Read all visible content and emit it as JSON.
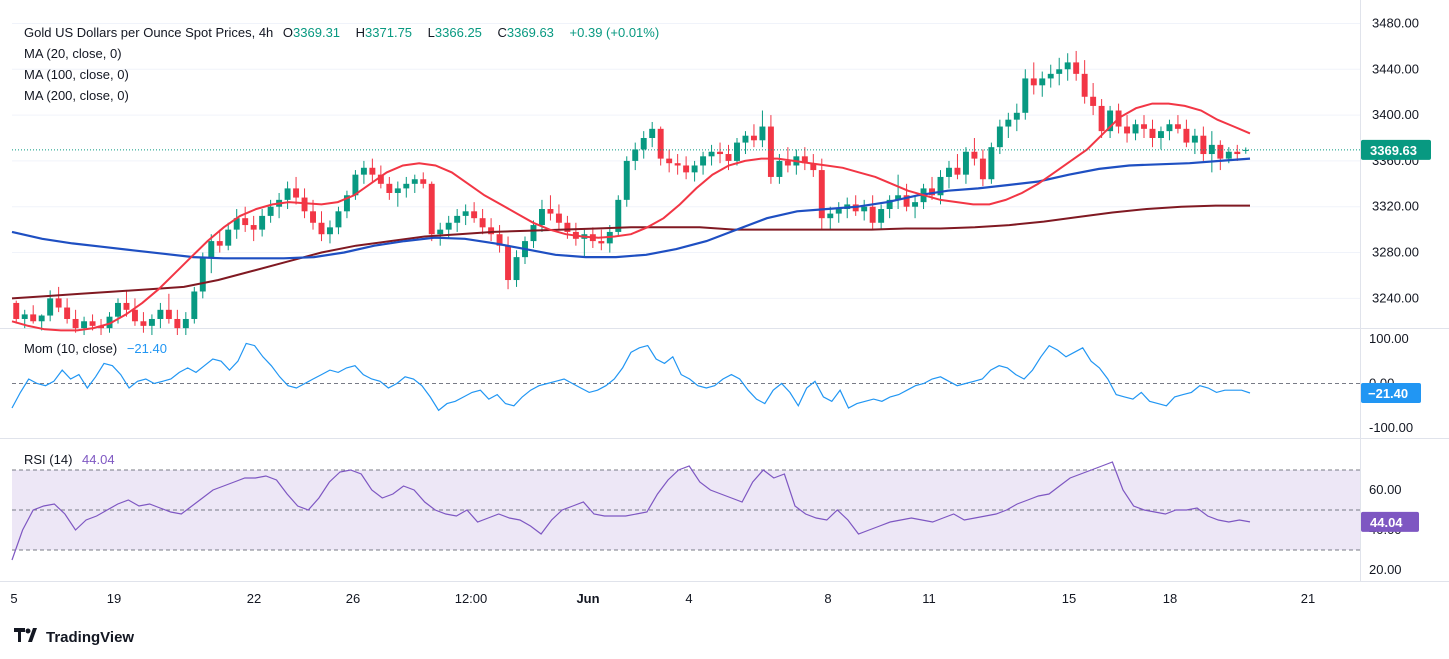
{
  "header": {
    "symbol": "Gold US Dollars per Ounce Spot Prices, 4h",
    "open_label": "O",
    "open": "3369.31",
    "high_label": "H",
    "high": "3371.75",
    "low_label": "L",
    "low": "3366.25",
    "close_label": "C",
    "close": "3369.63",
    "change": "+0.39 (+0.01%)"
  },
  "legend": {
    "ma20": "MA (20, close, 0)",
    "ma100": "MA (100, close, 0)",
    "ma200": "MA (200, close, 0)",
    "mom_name": "Mom (10, close)",
    "mom_value": "−21.40",
    "rsi_name": "RSI (14)",
    "rsi_value": "44.04"
  },
  "footer": {
    "brand": "TradingView"
  },
  "colors": {
    "up": "#089981",
    "down": "#f23645",
    "ma20": "#f23645",
    "ma100": "#1e4fc2",
    "ma200": "#801922",
    "mom": "#2196f3",
    "rsi": "#7e57c2",
    "rsi_band": "#ede7f6",
    "grid": "#f0f3fa",
    "axis_text": "#131722"
  },
  "chart_data": [
    {
      "type": "candlestick",
      "title": "Gold US Dollars per Ounce Spot Prices, 4h",
      "ylim": [
        3215,
        3490
      ],
      "y_ticks": [
        "3240.00",
        "3280.00",
        "3320.00",
        "3360.00",
        "3400.00",
        "3440.00",
        "3480.00"
      ],
      "last_price": "3369.63",
      "x_ticks": [
        "5",
        "19",
        "22",
        "26",
        "12:00",
        "Jun",
        "4",
        "8",
        "11",
        "15",
        "18",
        "21"
      ],
      "candles": [
        [
          3236,
          3238,
          3218,
          3222
        ],
        [
          3222,
          3230,
          3214,
          3226
        ],
        [
          3226,
          3234,
          3218,
          3220
        ],
        [
          3220,
          3226,
          3212,
          3225
        ],
        [
          3225,
          3247,
          3220,
          3240
        ],
        [
          3240,
          3250,
          3228,
          3232
        ],
        [
          3232,
          3240,
          3218,
          3222
        ],
        [
          3222,
          3230,
          3210,
          3214
        ],
        [
          3214,
          3224,
          3208,
          3220
        ],
        [
          3220,
          3226,
          3212,
          3216
        ],
        [
          3216,
          3222,
          3208,
          3214
        ],
        [
          3214,
          3228,
          3210,
          3224
        ],
        [
          3224,
          3240,
          3218,
          3236
        ],
        [
          3236,
          3246,
          3224,
          3230
        ],
        [
          3230,
          3240,
          3216,
          3220
        ],
        [
          3220,
          3228,
          3210,
          3216
        ],
        [
          3216,
          3226,
          3208,
          3222
        ],
        [
          3222,
          3236,
          3214,
          3230
        ],
        [
          3230,
          3244,
          3218,
          3222
        ],
        [
          3222,
          3230,
          3208,
          3214
        ],
        [
          3214,
          3228,
          3208,
          3222
        ],
        [
          3222,
          3250,
          3218,
          3246
        ],
        [
          3246,
          3280,
          3240,
          3276
        ],
        [
          3276,
          3296,
          3262,
          3290
        ],
        [
          3290,
          3300,
          3280,
          3286
        ],
        [
          3286,
          3306,
          3282,
          3300
        ],
        [
          3300,
          3318,
          3292,
          3310
        ],
        [
          3310,
          3320,
          3298,
          3304
        ],
        [
          3304,
          3312,
          3290,
          3300
        ],
        [
          3300,
          3318,
          3294,
          3312
        ],
        [
          3312,
          3326,
          3306,
          3320
        ],
        [
          3320,
          3332,
          3310,
          3326
        ],
        [
          3326,
          3342,
          3318,
          3336
        ],
        [
          3336,
          3346,
          3322,
          3328
        ],
        [
          3328,
          3336,
          3310,
          3316
        ],
        [
          3316,
          3326,
          3300,
          3306
        ],
        [
          3306,
          3316,
          3290,
          3296
        ],
        [
          3296,
          3308,
          3288,
          3302
        ],
        [
          3302,
          3320,
          3296,
          3316
        ],
        [
          3316,
          3334,
          3310,
          3330
        ],
        [
          3330,
          3352,
          3326,
          3348
        ],
        [
          3348,
          3360,
          3340,
          3354
        ],
        [
          3354,
          3362,
          3342,
          3348
        ],
        [
          3348,
          3356,
          3336,
          3340
        ],
        [
          3340,
          3346,
          3326,
          3332
        ],
        [
          3332,
          3342,
          3320,
          3336
        ],
        [
          3336,
          3346,
          3328,
          3340
        ],
        [
          3340,
          3348,
          3332,
          3344
        ],
        [
          3344,
          3350,
          3336,
          3340
        ],
        [
          3340,
          3342,
          3290,
          3296
        ],
        [
          3296,
          3306,
          3286,
          3300
        ],
        [
          3300,
          3312,
          3292,
          3306
        ],
        [
          3306,
          3318,
          3298,
          3312
        ],
        [
          3312,
          3322,
          3304,
          3316
        ],
        [
          3316,
          3324,
          3306,
          3310
        ],
        [
          3310,
          3318,
          3296,
          3302
        ],
        [
          3302,
          3310,
          3290,
          3296
        ],
        [
          3296,
          3304,
          3280,
          3286
        ],
        [
          3286,
          3294,
          3248,
          3256
        ],
        [
          3256,
          3282,
          3250,
          3276
        ],
        [
          3276,
          3294,
          3270,
          3290
        ],
        [
          3290,
          3308,
          3284,
          3304
        ],
        [
          3304,
          3326,
          3298,
          3318
        ],
        [
          3318,
          3330,
          3308,
          3314
        ],
        [
          3314,
          3322,
          3300,
          3306
        ],
        [
          3306,
          3312,
          3292,
          3298
        ],
        [
          3298,
          3306,
          3286,
          3292
        ],
        [
          3292,
          3300,
          3276,
          3296
        ],
        [
          3296,
          3302,
          3284,
          3290
        ],
        [
          3290,
          3300,
          3282,
          3288
        ],
        [
          3288,
          3304,
          3280,
          3298
        ],
        [
          3298,
          3330,
          3294,
          3326
        ],
        [
          3326,
          3364,
          3320,
          3360
        ],
        [
          3360,
          3376,
          3352,
          3370
        ],
        [
          3370,
          3386,
          3362,
          3380
        ],
        [
          3380,
          3394,
          3372,
          3388
        ],
        [
          3388,
          3390,
          3356,
          3362
        ],
        [
          3362,
          3370,
          3350,
          3358
        ],
        [
          3358,
          3366,
          3348,
          3356
        ],
        [
          3356,
          3364,
          3344,
          3350
        ],
        [
          3350,
          3360,
          3342,
          3356
        ],
        [
          3356,
          3368,
          3348,
          3364
        ],
        [
          3364,
          3374,
          3356,
          3368
        ],
        [
          3368,
          3376,
          3358,
          3366
        ],
        [
          3366,
          3374,
          3352,
          3360
        ],
        [
          3360,
          3380,
          3356,
          3376
        ],
        [
          3376,
          3386,
          3366,
          3382
        ],
        [
          3382,
          3392,
          3372,
          3378
        ],
        [
          3378,
          3404,
          3372,
          3390
        ],
        [
          3390,
          3400,
          3340,
          3346
        ],
        [
          3346,
          3366,
          3340,
          3360
        ],
        [
          3360,
          3372,
          3350,
          3356
        ],
        [
          3356,
          3370,
          3348,
          3364
        ],
        [
          3364,
          3372,
          3352,
          3358
        ],
        [
          3358,
          3366,
          3346,
          3352
        ],
        [
          3352,
          3362,
          3300,
          3310
        ],
        [
          3310,
          3320,
          3300,
          3314
        ],
        [
          3314,
          3324,
          3306,
          3318
        ],
        [
          3318,
          3328,
          3310,
          3322
        ],
        [
          3322,
          3330,
          3312,
          3316
        ],
        [
          3316,
          3326,
          3308,
          3320
        ],
        [
          3320,
          3330,
          3300,
          3306
        ],
        [
          3306,
          3322,
          3300,
          3318
        ],
        [
          3318,
          3330,
          3310,
          3326
        ],
        [
          3326,
          3348,
          3318,
          3330
        ],
        [
          3330,
          3340,
          3316,
          3320
        ],
        [
          3320,
          3330,
          3310,
          3324
        ],
        [
          3324,
          3340,
          3318,
          3336
        ],
        [
          3336,
          3346,
          3326,
          3330
        ],
        [
          3330,
          3352,
          3322,
          3346
        ],
        [
          3346,
          3360,
          3336,
          3354
        ],
        [
          3354,
          3366,
          3344,
          3348
        ],
        [
          3348,
          3372,
          3340,
          3368
        ],
        [
          3368,
          3380,
          3356,
          3362
        ],
        [
          3362,
          3370,
          3338,
          3344
        ],
        [
          3344,
          3376,
          3340,
          3372
        ],
        [
          3372,
          3396,
          3366,
          3390
        ],
        [
          3390,
          3402,
          3380,
          3396
        ],
        [
          3396,
          3410,
          3386,
          3402
        ],
        [
          3402,
          3440,
          3396,
          3432
        ],
        [
          3432,
          3446,
          3418,
          3426
        ],
        [
          3426,
          3438,
          3416,
          3432
        ],
        [
          3432,
          3444,
          3424,
          3436
        ],
        [
          3436,
          3450,
          3426,
          3440
        ],
        [
          3440,
          3454,
          3430,
          3446
        ],
        [
          3446,
          3456,
          3430,
          3436
        ],
        [
          3436,
          3448,
          3410,
          3416
        ],
        [
          3416,
          3428,
          3400,
          3408
        ],
        [
          3408,
          3414,
          3380,
          3386
        ],
        [
          3386,
          3408,
          3380,
          3404
        ],
        [
          3404,
          3410,
          3384,
          3390
        ],
        [
          3390,
          3400,
          3376,
          3384
        ],
        [
          3384,
          3396,
          3378,
          3392
        ],
        [
          3392,
          3400,
          3380,
          3388
        ],
        [
          3388,
          3396,
          3372,
          3380
        ],
        [
          3380,
          3390,
          3370,
          3386
        ],
        [
          3386,
          3396,
          3378,
          3392
        ],
        [
          3392,
          3400,
          3384,
          3388
        ],
        [
          3388,
          3396,
          3372,
          3376
        ],
        [
          3376,
          3388,
          3366,
          3382
        ],
        [
          3382,
          3390,
          3360,
          3366
        ],
        [
          3366,
          3386,
          3350,
          3374
        ],
        [
          3374,
          3378,
          3352,
          3362
        ],
        [
          3362,
          3372,
          3358,
          3368
        ],
        [
          3368,
          3374,
          3360,
          3366
        ],
        [
          3369.31,
          3371.75,
          3366.25,
          3369.63
        ]
      ],
      "ma20": [
        3220,
        3216,
        3213,
        3212,
        3212,
        3214,
        3218,
        3226,
        3236,
        3248,
        3262,
        3276,
        3290,
        3302,
        3312,
        3318,
        3322,
        3324,
        3323,
        3322,
        3324,
        3330,
        3340,
        3350,
        3356,
        3358,
        3356,
        3350,
        3340,
        3330,
        3322,
        3314,
        3306,
        3300,
        3296,
        3294,
        3293,
        3294,
        3296,
        3302,
        3310,
        3322,
        3336,
        3348,
        3356,
        3360,
        3362,
        3362,
        3360,
        3358,
        3356,
        3354,
        3350,
        3346,
        3340,
        3334,
        3330,
        3326,
        3324,
        3322,
        3322,
        3326,
        3332,
        3340,
        3350,
        3360,
        3370,
        3384,
        3398,
        3406,
        3410,
        3410,
        3408,
        3404,
        3396,
        3390,
        3384
      ],
      "ma100": [
        3298,
        3292,
        3288,
        3285,
        3282,
        3279,
        3276,
        3275,
        3275,
        3275,
        3276,
        3280,
        3286,
        3290,
        3293,
        3292,
        3288,
        3283,
        3278,
        3276,
        3276,
        3278,
        3283,
        3290,
        3300,
        3310,
        3316,
        3318,
        3320,
        3324,
        3330,
        3334,
        3336,
        3339,
        3342,
        3348,
        3353,
        3356,
        3357,
        3358,
        3360,
        3362
      ],
      "ma200": [
        3240,
        3242,
        3244,
        3246,
        3248,
        3250,
        3256,
        3264,
        3272,
        3280,
        3286,
        3290,
        3294,
        3296,
        3298,
        3299,
        3300,
        3301,
        3302,
        3302,
        3302,
        3300,
        3300,
        3300,
        3300,
        3300,
        3301,
        3301,
        3302,
        3304,
        3307,
        3311,
        3315,
        3318,
        3320,
        3321,
        3321
      ],
      "crosshair_pct_ma20_last": 3380
    },
    {
      "type": "line",
      "title": "Mom (10, close)",
      "ylim": [
        -120,
        120
      ],
      "y_ticks": [
        "100.00",
        "0.00",
        "-100.00"
      ],
      "last_value": "-21.40",
      "values": [
        -55,
        -20,
        10,
        0,
        -5,
        5,
        30,
        10,
        20,
        -10,
        15,
        45,
        40,
        20,
        -10,
        5,
        10,
        0,
        5,
        10,
        25,
        35,
        25,
        40,
        55,
        50,
        30,
        50,
        90,
        85,
        60,
        40,
        15,
        -5,
        -10,
        0,
        10,
        20,
        30,
        25,
        35,
        40,
        20,
        10,
        5,
        -10,
        0,
        15,
        10,
        -5,
        -30,
        -60,
        -45,
        -40,
        -30,
        -20,
        -15,
        -35,
        -25,
        -45,
        -50,
        -30,
        -15,
        -5,
        0,
        5,
        10,
        0,
        -10,
        -20,
        -15,
        -5,
        10,
        35,
        70,
        80,
        85,
        55,
        45,
        60,
        20,
        10,
        -5,
        -10,
        -5,
        10,
        20,
        10,
        -15,
        -35,
        -45,
        -15,
        0,
        -20,
        -50,
        -10,
        5,
        -30,
        -40,
        -15,
        -55,
        -45,
        -40,
        -35,
        -40,
        -30,
        -25,
        -15,
        -5,
        0,
        10,
        15,
        5,
        -5,
        0,
        5,
        10,
        30,
        40,
        35,
        20,
        10,
        30,
        60,
        85,
        75,
        60,
        70,
        80,
        50,
        35,
        10,
        -25,
        -30,
        -35,
        -20,
        -40,
        -45,
        -50,
        -30,
        -25,
        -20,
        -5,
        -10,
        -20,
        -15,
        -15,
        -15,
        -21.4
      ]
    },
    {
      "type": "line",
      "title": "RSI (14)",
      "ylim": [
        15,
        85
      ],
      "y_ticks": [
        "60.00",
        "40.00",
        "20.00"
      ],
      "bands": [
        30,
        50,
        70
      ],
      "last_value": "44.04",
      "values": [
        25,
        40,
        50,
        52,
        53,
        48,
        40,
        45,
        47,
        50,
        53,
        55,
        52,
        53,
        51,
        49,
        48,
        52,
        56,
        60,
        62,
        64,
        66,
        66,
        67,
        65,
        58,
        52,
        50,
        56,
        64,
        69,
        70,
        68,
        60,
        56,
        58,
        62,
        60,
        54,
        50,
        48,
        47,
        50,
        44,
        46,
        48,
        46,
        45,
        42,
        38,
        45,
        50,
        52,
        54,
        48,
        47,
        47,
        47,
        48,
        49,
        58,
        65,
        70,
        72,
        64,
        60,
        58,
        56,
        54,
        64,
        70,
        66,
        68,
        52,
        48,
        46,
        45,
        50,
        45,
        38,
        40,
        42,
        44,
        45,
        46,
        45,
        44,
        46,
        48,
        45,
        46,
        47,
        48,
        50,
        53,
        55,
        57,
        58,
        62,
        66,
        68,
        70,
        72,
        74,
        60,
        52,
        50,
        49,
        48,
        50,
        50,
        51,
        47,
        45,
        44,
        45,
        44.04
      ]
    }
  ]
}
